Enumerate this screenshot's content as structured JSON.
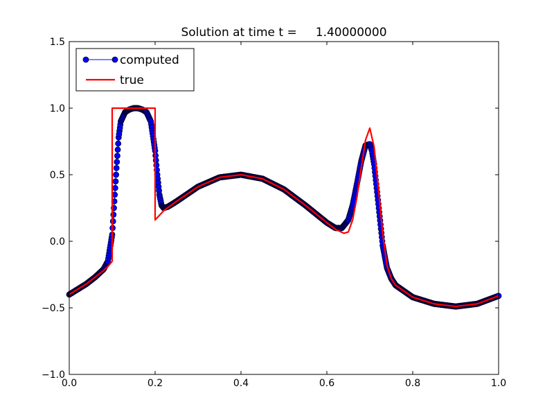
{
  "chart_data": {
    "type": "line",
    "title": "Solution at time t =     1.40000000",
    "xlabel": "",
    "ylabel": "",
    "xlim": [
      0.0,
      1.0
    ],
    "ylim": [
      -1.0,
      1.5
    ],
    "xticks": [
      0.0,
      0.2,
      0.4,
      0.6,
      0.8,
      1.0
    ],
    "xtick_labels": [
      "0.0",
      "0.2",
      "0.4",
      "0.6",
      "0.8",
      "1.0"
    ],
    "yticks": [
      -1.0,
      -0.5,
      0.0,
      0.5,
      1.0,
      1.5
    ],
    "ytick_labels": [
      "−1.0",
      "−0.5",
      "0.0",
      "0.5",
      "1.0",
      "1.5"
    ],
    "grid": false,
    "legend_position": "top-left",
    "series": [
      {
        "name": "computed",
        "style": "line-with-circle-markers",
        "color": "#0000ff",
        "marker_edge_color": "#000033",
        "x": [
          0.0,
          0.02,
          0.04,
          0.06,
          0.08,
          0.09,
          0.1,
          0.105,
          0.11,
          0.115,
          0.12,
          0.13,
          0.14,
          0.15,
          0.16,
          0.17,
          0.18,
          0.19,
          0.2,
          0.205,
          0.21,
          0.215,
          0.22,
          0.23,
          0.25,
          0.3,
          0.35,
          0.4,
          0.45,
          0.5,
          0.55,
          0.6,
          0.62,
          0.635,
          0.65,
          0.66,
          0.67,
          0.68,
          0.69,
          0.7,
          0.705,
          0.71,
          0.72,
          0.73,
          0.74,
          0.75,
          0.76,
          0.8,
          0.85,
          0.9,
          0.95,
          1.0
        ],
        "y": [
          -0.4,
          -0.36,
          -0.32,
          -0.27,
          -0.21,
          -0.15,
          0.05,
          0.3,
          0.55,
          0.78,
          0.9,
          0.97,
          0.99,
          1.0,
          1.0,
          0.99,
          0.97,
          0.9,
          0.68,
          0.5,
          0.35,
          0.27,
          0.25,
          0.26,
          0.3,
          0.41,
          0.48,
          0.5,
          0.47,
          0.39,
          0.27,
          0.14,
          0.1,
          0.1,
          0.16,
          0.27,
          0.43,
          0.6,
          0.72,
          0.73,
          0.68,
          0.58,
          0.28,
          -0.03,
          -0.2,
          -0.28,
          -0.33,
          -0.42,
          -0.47,
          -0.49,
          -0.47,
          -0.41
        ]
      },
      {
        "name": "true",
        "style": "line",
        "color": "#ff0000",
        "x": [
          0.0,
          0.02,
          0.04,
          0.06,
          0.08,
          0.09,
          0.1,
          0.1,
          0.2,
          0.2,
          0.22,
          0.25,
          0.3,
          0.35,
          0.4,
          0.45,
          0.5,
          0.55,
          0.6,
          0.62,
          0.64,
          0.65,
          0.66,
          0.67,
          0.68,
          0.69,
          0.7,
          0.71,
          0.72,
          0.73,
          0.74,
          0.75,
          0.76,
          0.8,
          0.85,
          0.9,
          0.95,
          1.0
        ],
        "y": [
          -0.4,
          -0.36,
          -0.32,
          -0.27,
          -0.22,
          -0.19,
          -0.15,
          1.0,
          1.0,
          0.16,
          0.23,
          0.3,
          0.41,
          0.48,
          0.5,
          0.47,
          0.39,
          0.27,
          0.14,
          0.09,
          0.06,
          0.07,
          0.16,
          0.33,
          0.55,
          0.76,
          0.85,
          0.71,
          0.4,
          0.06,
          -0.18,
          -0.28,
          -0.33,
          -0.42,
          -0.47,
          -0.49,
          -0.47,
          -0.41
        ]
      }
    ]
  }
}
